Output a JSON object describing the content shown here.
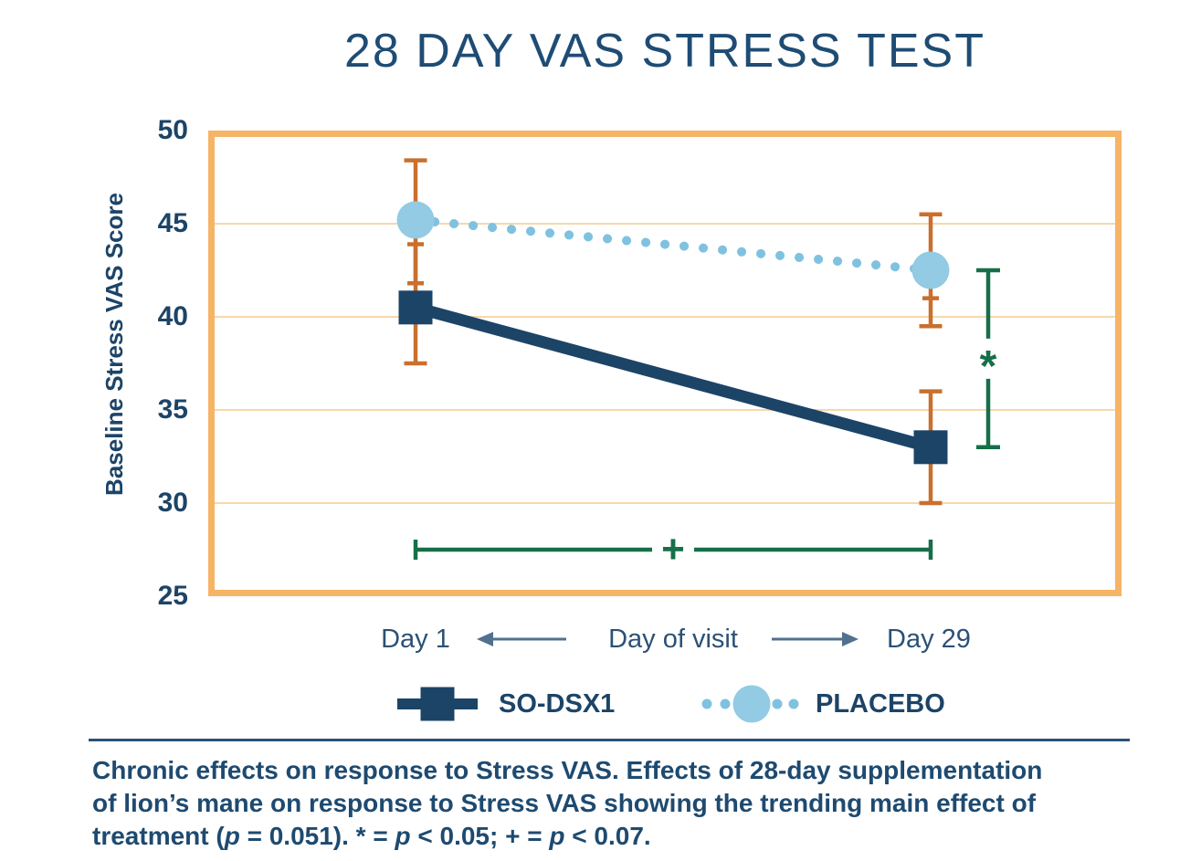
{
  "chart_data": {
    "type": "line",
    "title": "28 DAY VAS STRESS TEST",
    "ylabel": "Baseline Stress VAS Score",
    "xlabel": "Day of visit",
    "categories": [
      "Day 1",
      "Day 29"
    ],
    "ylim": [
      25,
      50
    ],
    "yticks": [
      50,
      45,
      40,
      35,
      30,
      25
    ],
    "grid": true,
    "legend_position": "bottom",
    "series": [
      {
        "name": "SO-DSX1",
        "marker": "square",
        "line": "solid",
        "color": "#1c4467",
        "values": [
          40.5,
          33.0
        ]
      },
      {
        "name": "PLACEBO",
        "marker": "circle",
        "line": "dotted",
        "color": "#92cbe3",
        "dot_color": "#7fc2e0",
        "values": [
          45.2,
          42.5
        ]
      }
    ],
    "error_bars": [
      {
        "series": "PLACEBO",
        "x": "Day 1",
        "lo": 41.8,
        "hi": 48.4,
        "lo_cap": "narrow"
      },
      {
        "series": "SO-DSX1",
        "x": "Day 1",
        "lo": 37.5,
        "hi": 43.9,
        "hi_cap": "narrow"
      },
      {
        "series": "PLACEBO",
        "x": "Day 29",
        "lo": 39.5,
        "hi": 45.5,
        "extra_cap": 41.0
      },
      {
        "series": "SO-DSX1",
        "x": "Day 29",
        "lo": 30.0,
        "hi": 36.0
      }
    ],
    "annotations": [
      {
        "type": "vbracket",
        "symbol": "*",
        "from": 42.5,
        "to": 33.0
      },
      {
        "type": "hbracket",
        "symbol": "+",
        "y": 27.5
      }
    ],
    "colors": {
      "plot_border": "#f6b466",
      "grid": "#f6d8ab",
      "error_bar": "#c9702e",
      "green": "#166f48",
      "arrow": "#52708f"
    }
  },
  "caption": {
    "lines": [
      "Chronic effects on response to Stress VAS. Effects of 28-day supplementation",
      "of lion’s mane on response to Stress VAS showing the trending main effect of",
      "treatment (p = 0.051). * = p < 0.05; + = p < 0.07."
    ]
  }
}
